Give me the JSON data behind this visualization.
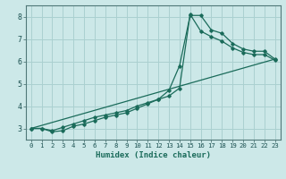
{
  "xlabel": "Humidex (Indice chaleur)",
  "bg_color": "#cce8e8",
  "grid_color": "#aad0d0",
  "line_color": "#1a6b5a",
  "spine_color": "#507878",
  "tick_color": "#1a5050",
  "xlim": [
    -0.5,
    23.5
  ],
  "ylim": [
    2.5,
    8.5
  ],
  "xticks": [
    0,
    1,
    2,
    3,
    4,
    5,
    6,
    7,
    8,
    9,
    10,
    11,
    12,
    13,
    14,
    15,
    16,
    17,
    18,
    19,
    20,
    21,
    22,
    23
  ],
  "yticks": [
    3,
    4,
    5,
    6,
    7,
    8
  ],
  "line1_x": [
    0,
    1,
    2,
    3,
    4,
    5,
    6,
    7,
    8,
    9,
    10,
    11,
    12,
    13,
    14,
    15,
    16,
    17,
    18,
    19,
    20,
    21,
    22,
    23
  ],
  "line1_y": [
    3.0,
    3.0,
    2.85,
    2.9,
    3.1,
    3.2,
    3.35,
    3.5,
    3.6,
    3.7,
    3.9,
    4.1,
    4.3,
    4.7,
    5.8,
    8.05,
    8.05,
    7.4,
    7.25,
    6.8,
    6.55,
    6.45,
    6.45,
    6.1
  ],
  "line2_x": [
    0,
    1,
    2,
    3,
    4,
    5,
    6,
    7,
    8,
    9,
    10,
    11,
    12,
    13,
    14,
    15,
    16,
    17,
    18,
    19,
    20,
    21,
    22,
    23
  ],
  "line2_y": [
    3.0,
    3.0,
    2.9,
    3.05,
    3.2,
    3.35,
    3.5,
    3.6,
    3.7,
    3.8,
    4.0,
    4.15,
    4.3,
    4.45,
    4.8,
    8.1,
    7.35,
    7.1,
    6.9,
    6.6,
    6.4,
    6.3,
    6.3,
    6.05
  ],
  "line3_x": [
    0,
    23
  ],
  "line3_y": [
    3.0,
    6.1
  ]
}
